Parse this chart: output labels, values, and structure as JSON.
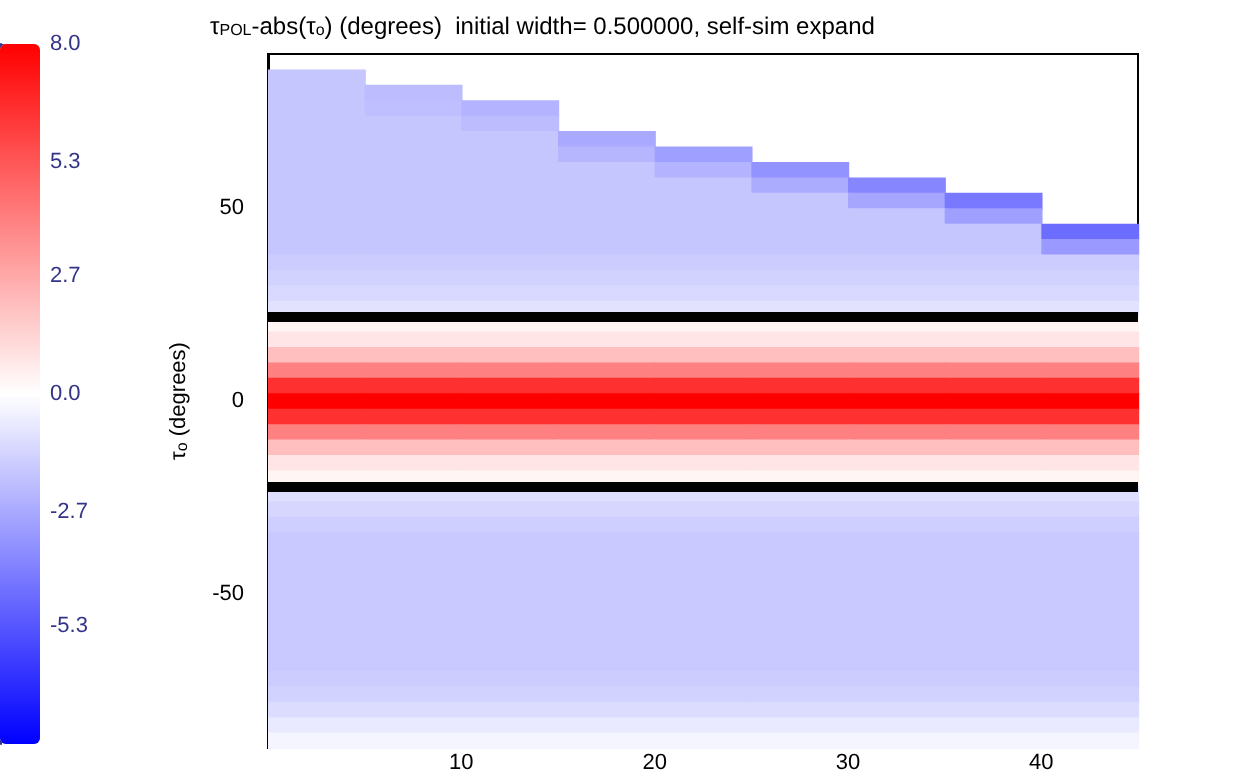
{
  "chart_data": {
    "type": "heatmap",
    "title": "τ$_{POL}$-abs(τ$_{o}$) (degrees)  initial width= 0.500000, self-sim expand",
    "ylabel": "τ$_{o}$ (degrees)",
    "x": [
      2.5,
      7.5,
      12.5,
      17.5,
      22.5,
      27.5,
      32.5,
      37.5,
      42.5
    ],
    "y": [
      84,
      80,
      76,
      72,
      68,
      64,
      60,
      56,
      52,
      48,
      44,
      40,
      36,
      32,
      28,
      24,
      20,
      16,
      12,
      8,
      4,
      0,
      -4,
      -8,
      -12,
      -16,
      -20,
      -24,
      -28,
      -32,
      -36,
      -40,
      -44,
      -48,
      -52,
      -56,
      -60,
      -64,
      -68,
      -72,
      -76,
      -80,
      -84,
      -88
    ],
    "cells": [
      [
        -1.8,
        null,
        null,
        null,
        null,
        null,
        null,
        null,
        null
      ],
      [
        -1.8,
        -2.1,
        null,
        null,
        null,
        null,
        null,
        null,
        null
      ],
      [
        -1.8,
        -2.0,
        -2.4,
        null,
        null,
        null,
        null,
        null,
        null
      ],
      [
        -1.8,
        -1.8,
        -2.1,
        null,
        null,
        null,
        null,
        null,
        null
      ],
      [
        -1.8,
        -1.8,
        -1.8,
        -2.7,
        null,
        null,
        null,
        null,
        null
      ],
      [
        -1.8,
        -1.8,
        -1.8,
        -2.3,
        -3.0,
        null,
        null,
        null,
        null
      ],
      [
        -1.8,
        -1.8,
        -1.8,
        -1.8,
        -2.4,
        -3.4,
        null,
        null,
        null
      ],
      [
        -1.8,
        -1.8,
        -1.8,
        -1.8,
        -1.8,
        -2.6,
        -3.8,
        null,
        null
      ],
      [
        -1.8,
        -1.8,
        -1.8,
        -1.8,
        -1.8,
        -1.8,
        -2.8,
        -4.2,
        null
      ],
      [
        -1.8,
        -1.8,
        -1.8,
        -1.8,
        -1.8,
        -1.8,
        -1.8,
        -3.0,
        null
      ],
      [
        -1.8,
        -1.8,
        -1.8,
        -1.8,
        -1.8,
        -1.8,
        -1.8,
        -1.8,
        -4.6
      ],
      [
        -1.8,
        -1.8,
        -1.8,
        -1.8,
        -1.8,
        -1.8,
        -1.8,
        -1.8,
        -3.2
      ],
      [
        -1.6,
        -1.6,
        -1.6,
        -1.6,
        -1.6,
        -1.6,
        -1.6,
        -1.6,
        -1.6
      ],
      [
        -1.4,
        -1.4,
        -1.4,
        -1.4,
        -1.4,
        -1.4,
        -1.4,
        -1.4,
        -1.4
      ],
      [
        -1.2,
        -1.2,
        -1.2,
        -1.2,
        -1.2,
        -1.2,
        -1.2,
        -1.2,
        -1.2
      ],
      [
        -0.9,
        -0.9,
        -0.9,
        -0.9,
        -0.9,
        -0.9,
        -0.9,
        -0.9,
        -0.9
      ],
      [
        0.3,
        0.3,
        0.3,
        0.3,
        0.3,
        0.3,
        0.3,
        0.3,
        0.3
      ],
      [
        0.8,
        0.8,
        0.8,
        0.8,
        0.8,
        0.8,
        0.8,
        0.8,
        0.8
      ],
      [
        2.0,
        2.0,
        2.0,
        2.0,
        2.0,
        2.0,
        2.0,
        2.0,
        2.0
      ],
      [
        4.0,
        4.0,
        4.0,
        4.0,
        4.0,
        4.0,
        4.0,
        4.0,
        4.0
      ],
      [
        6.5,
        6.5,
        6.5,
        6.5,
        6.5,
        6.5,
        6.5,
        6.5,
        6.5
      ],
      [
        8.0,
        8.0,
        8.0,
        8.0,
        8.0,
        8.0,
        8.0,
        8.0,
        8.0
      ],
      [
        6.5,
        6.5,
        6.5,
        6.5,
        6.5,
        6.5,
        6.5,
        6.5,
        6.5
      ],
      [
        4.0,
        4.0,
        4.0,
        4.0,
        4.0,
        4.0,
        4.0,
        4.0,
        4.0
      ],
      [
        2.0,
        2.0,
        2.0,
        2.0,
        2.0,
        2.0,
        2.0,
        2.0,
        2.0
      ],
      [
        0.8,
        0.8,
        0.8,
        0.8,
        0.8,
        0.8,
        0.8,
        0.8,
        0.8
      ],
      [
        0.3,
        0.3,
        0.3,
        0.3,
        0.3,
        0.3,
        0.3,
        0.3,
        0.3
      ],
      [
        -1.0,
        -1.0,
        -1.0,
        -1.0,
        -1.0,
        -1.0,
        -1.0,
        -1.0,
        -1.0
      ],
      [
        -1.3,
        -1.3,
        -1.3,
        -1.3,
        -1.3,
        -1.3,
        -1.3,
        -1.3,
        -1.3
      ],
      [
        -1.5,
        -1.5,
        -1.5,
        -1.5,
        -1.5,
        -1.5,
        -1.5,
        -1.5,
        -1.5
      ],
      [
        -1.7,
        -1.7,
        -1.7,
        -1.7,
        -1.7,
        -1.7,
        -1.7,
        -1.7,
        -1.7
      ],
      [
        -1.7,
        -1.7,
        -1.7,
        -1.7,
        -1.7,
        -1.7,
        -1.7,
        -1.7,
        -1.7
      ],
      [
        -1.7,
        -1.7,
        -1.7,
        -1.7,
        -1.7,
        -1.7,
        -1.7,
        -1.7,
        -1.7
      ],
      [
        -1.7,
        -1.7,
        -1.7,
        -1.7,
        -1.7,
        -1.7,
        -1.7,
        -1.7,
        -1.7
      ],
      [
        -1.7,
        -1.7,
        -1.7,
        -1.7,
        -1.7,
        -1.7,
        -1.7,
        -1.7,
        -1.7
      ],
      [
        -1.7,
        -1.7,
        -1.7,
        -1.7,
        -1.7,
        -1.7,
        -1.7,
        -1.7,
        -1.7
      ],
      [
        -1.7,
        -1.7,
        -1.7,
        -1.7,
        -1.7,
        -1.7,
        -1.7,
        -1.7,
        -1.7
      ],
      [
        -1.7,
        -1.7,
        -1.7,
        -1.7,
        -1.7,
        -1.7,
        -1.7,
        -1.7,
        -1.7
      ],
      [
        -1.7,
        -1.7,
        -1.7,
        -1.7,
        -1.7,
        -1.7,
        -1.7,
        -1.7,
        -1.7
      ],
      [
        -1.6,
        -1.6,
        -1.6,
        -1.6,
        -1.6,
        -1.6,
        -1.6,
        -1.6,
        -1.6
      ],
      [
        -1.4,
        -1.4,
        -1.4,
        -1.4,
        -1.4,
        -1.4,
        -1.4,
        -1.4,
        -1.4
      ],
      [
        -1.1,
        -1.1,
        -1.1,
        -1.1,
        -1.1,
        -1.1,
        -1.1,
        -1.1,
        -1.1
      ],
      [
        -0.7,
        -0.7,
        -0.7,
        -0.7,
        -0.7,
        -0.7,
        -0.7,
        -0.7,
        -0.7
      ],
      [
        -0.3,
        -0.3,
        -0.3,
        -0.3,
        -0.3,
        -0.3,
        -0.3,
        -0.3,
        -0.3
      ]
    ],
    "clim": [
      -8,
      8
    ],
    "cticks": [
      {
        "value": 8,
        "label": "8.0"
      },
      5.3,
      2.7,
      {
        "value": 0,
        "label": "0.0"
      },
      -2.7,
      -5.3
    ],
    "xlim": [
      0,
      45
    ],
    "xticks": [
      10,
      20,
      30,
      40
    ],
    "ylim": [
      -90,
      90
    ],
    "yticks": [
      -50,
      0,
      50
    ],
    "ref_lines": [
      {
        "axis": "y",
        "value": 22,
        "color": "#000000"
      },
      {
        "axis": "y",
        "value": -22,
        "color": "#000000"
      }
    ],
    "grid": false
  }
}
